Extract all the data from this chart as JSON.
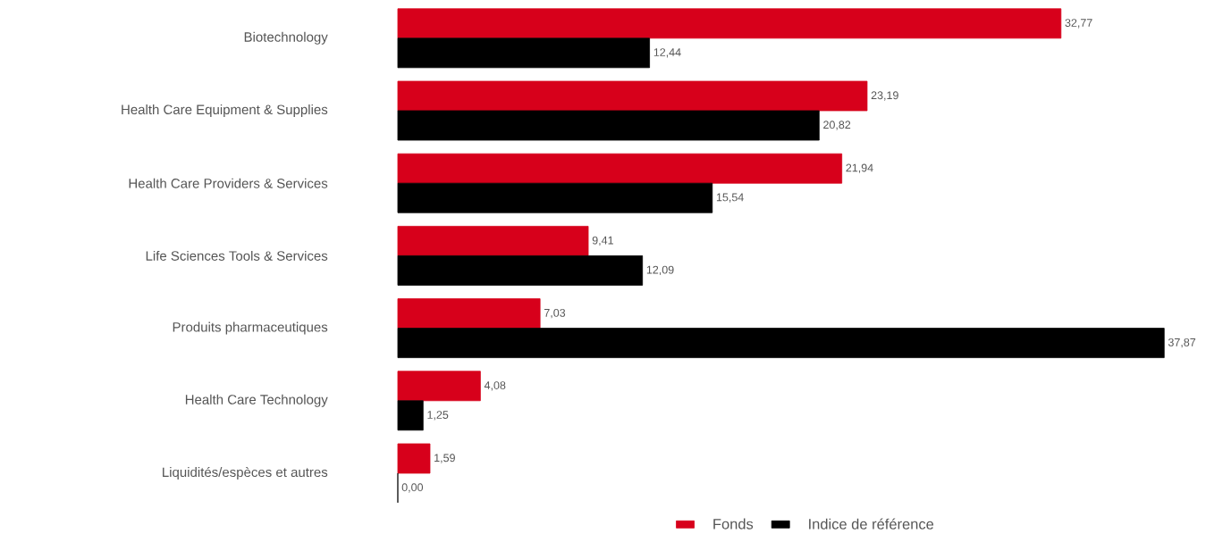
{
  "chart_data": {
    "type": "bar",
    "orientation": "horizontal",
    "legend": "bottom",
    "categories": [
      "Biotechnology",
      "Health Care Equipment & Supplies",
      "Health Care Providers & Services",
      "Life Sciences Tools & Services",
      "Produits pharmaceutiques",
      "Health Care Technology",
      "Liquidités/espèces et autres"
    ],
    "series": [
      {
        "name": "Fonds",
        "color": "#d7001b",
        "values": [
          32.77,
          23.19,
          21.94,
          9.41,
          7.03,
          4.08,
          1.59
        ],
        "value_labels": [
          "32,77",
          "23,19",
          "21,94",
          "9,41",
          "7,03",
          "4,08",
          "1,59"
        ]
      },
      {
        "name": "Indice de référence",
        "color": "#000000",
        "values": [
          12.44,
          20.82,
          15.54,
          12.09,
          37.87,
          1.25,
          0.0
        ],
        "value_labels": [
          "12,44",
          "20,82",
          "15,54",
          "12,09",
          "37,87",
          "1,25",
          "0,00"
        ]
      }
    ]
  }
}
